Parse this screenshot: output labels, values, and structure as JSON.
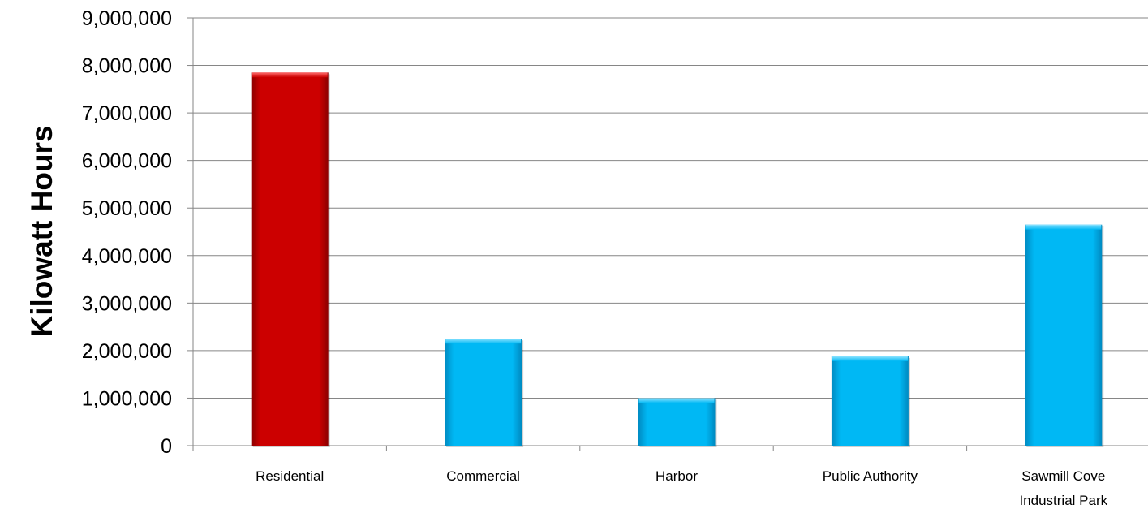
{
  "chart_data": {
    "type": "bar",
    "title": "",
    "xlabel": "",
    "ylabel": "Kilowatt Hours",
    "categories": [
      "Residential",
      "Commercial",
      "Harbor",
      "Public Authority",
      "Sawmill Cove Industrial Park"
    ],
    "category_lines": [
      [
        "Residential"
      ],
      [
        "Commercial"
      ],
      [
        "Harbor"
      ],
      [
        "Public Authority"
      ],
      [
        "Sawmill Cove",
        "Industrial Park"
      ]
    ],
    "values": [
      7850000,
      2250000,
      1000000,
      1880000,
      4650000
    ],
    "ylim": [
      0,
      9000000
    ],
    "yticks": [
      0,
      1000000,
      2000000,
      3000000,
      4000000,
      5000000,
      6000000,
      7000000,
      8000000,
      9000000
    ],
    "ytick_labels": [
      "0",
      "1,000,000",
      "2,000,000",
      "3,000,000",
      "4,000,000",
      "5,000,000",
      "6,000,000",
      "7,000,000",
      "8,000,000",
      "9,000,000"
    ],
    "grid": true,
    "legend": "none",
    "colors": {
      "highlight": "#cc0000",
      "default": "#00b0f0"
    },
    "bar_colors": [
      "highlight",
      "default",
      "default",
      "default",
      "default"
    ]
  }
}
